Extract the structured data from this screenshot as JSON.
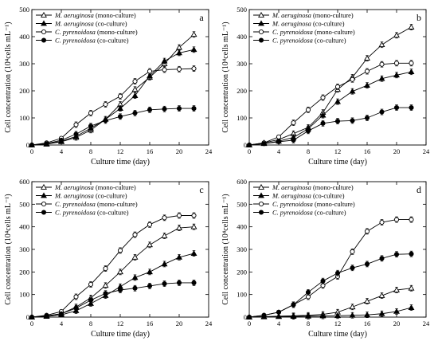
{
  "chart_data": [
    {
      "type": "line",
      "panel_label": "a",
      "xlabel": "Culture time (day)",
      "ylabel_text": "Cell concentration",
      "ylabel_unit": "(10⁴cells mL⁻¹)",
      "xlim": [
        0,
        24
      ],
      "ylim": [
        0,
        500
      ],
      "xticks": [
        0,
        4,
        8,
        12,
        16,
        20,
        24
      ],
      "yticks": [
        0,
        100,
        200,
        300,
        400,
        500
      ],
      "legend_position": "top-left",
      "series": [
        {
          "name_italic": "M. aeruginosa",
          "name_suffix": " (mono-culture)",
          "marker": "open-triangle",
          "x": [
            0,
            2,
            4,
            6,
            8,
            10,
            12,
            14,
            16,
            18,
            20,
            22
          ],
          "y": [
            0,
            3,
            12,
            28,
            55,
            95,
            150,
            205,
            250,
            300,
            360,
            408
          ]
        },
        {
          "name_italic": "M. aeruginosa",
          "name_suffix": " (co-culture)",
          "marker": "filled-triangle",
          "x": [
            0,
            2,
            4,
            6,
            8,
            10,
            12,
            14,
            16,
            18,
            20,
            22
          ],
          "y": [
            0,
            4,
            14,
            32,
            62,
            95,
            135,
            182,
            255,
            310,
            340,
            352
          ]
        },
        {
          "name_italic": "C. pyrenoidosa",
          "name_suffix": " (mono-culture)",
          "marker": "open-circle",
          "x": [
            0,
            2,
            4,
            6,
            8,
            10,
            12,
            14,
            16,
            18,
            20,
            22
          ],
          "y": [
            0,
            8,
            25,
            75,
            118,
            150,
            180,
            235,
            272,
            278,
            280,
            282
          ]
        },
        {
          "name_italic": "C. pyrenoidosa",
          "name_suffix": " (co-culture)",
          "marker": "filled-circle",
          "x": [
            0,
            2,
            4,
            6,
            8,
            10,
            12,
            14,
            16,
            18,
            20,
            22
          ],
          "y": [
            0,
            5,
            18,
            40,
            70,
            90,
            105,
            118,
            130,
            133,
            135,
            135
          ]
        }
      ]
    },
    {
      "type": "line",
      "panel_label": "b",
      "xlabel": "Culture time (day)",
      "ylabel_text": "Cell concentration",
      "ylabel_unit": "(10⁴cells mL⁻¹)",
      "xlim": [
        0,
        24
      ],
      "ylim": [
        0,
        500
      ],
      "xticks": [
        0,
        4,
        8,
        12,
        16,
        20,
        24
      ],
      "yticks": [
        0,
        100,
        200,
        300,
        400,
        500
      ],
      "legend_position": "top-left",
      "series": [
        {
          "name_italic": "M. aeruginosa",
          "name_suffix": " (mono-culture)",
          "marker": "open-triangle",
          "x": [
            0,
            2,
            4,
            6,
            8,
            10,
            12,
            14,
            16,
            18,
            20,
            22
          ],
          "y": [
            0,
            8,
            20,
            42,
            65,
            120,
            205,
            250,
            320,
            370,
            405,
            435
          ]
        },
        {
          "name_italic": "M. aeruginosa",
          "name_suffix": " (co-culture)",
          "marker": "filled-triangle",
          "x": [
            0,
            2,
            4,
            6,
            8,
            10,
            12,
            14,
            16,
            18,
            20,
            22
          ],
          "y": [
            0,
            5,
            14,
            28,
            60,
            110,
            160,
            198,
            220,
            245,
            258,
            270
          ]
        },
        {
          "name_italic": "C. pyrenoidosa",
          "name_suffix": " (mono-culture)",
          "marker": "open-circle",
          "x": [
            0,
            2,
            4,
            6,
            8,
            10,
            12,
            14,
            16,
            18,
            20,
            22
          ],
          "y": [
            0,
            8,
            30,
            82,
            130,
            175,
            215,
            242,
            272,
            298,
            302,
            302
          ]
        },
        {
          "name_italic": "C. pyrenoidosa",
          "name_suffix": " (co-culture)",
          "marker": "filled-circle",
          "x": [
            0,
            2,
            4,
            6,
            8,
            10,
            12,
            14,
            16,
            18,
            20,
            22
          ],
          "y": [
            0,
            5,
            12,
            18,
            52,
            80,
            88,
            90,
            100,
            122,
            138,
            138
          ]
        }
      ]
    },
    {
      "type": "line",
      "panel_label": "c",
      "xlabel": "Culture time (day)",
      "ylabel_text": "Cell concentration",
      "ylabel_unit": "(10⁴cells mL⁻¹)",
      "xlim": [
        0,
        24
      ],
      "ylim": [
        0,
        600
      ],
      "xticks": [
        0,
        4,
        8,
        12,
        16,
        20,
        24
      ],
      "yticks": [
        0,
        100,
        200,
        300,
        400,
        500,
        600
      ],
      "legend_position": "top-left",
      "series": [
        {
          "name_italic": "M. aeruginosa",
          "name_suffix": " (mono-culture)",
          "marker": "open-triangle",
          "x": [
            0,
            2,
            4,
            6,
            8,
            10,
            12,
            14,
            16,
            18,
            20,
            22
          ],
          "y": [
            0,
            5,
            15,
            45,
            85,
            140,
            200,
            265,
            320,
            360,
            395,
            400
          ]
        },
        {
          "name_italic": "M. aeruginosa",
          "name_suffix": " (co-culture)",
          "marker": "filled-triangle",
          "x": [
            0,
            2,
            4,
            6,
            8,
            10,
            12,
            14,
            16,
            18,
            20,
            22
          ],
          "y": [
            0,
            3,
            10,
            28,
            60,
            95,
            135,
            175,
            200,
            235,
            265,
            282
          ]
        },
        {
          "name_italic": "C. pyrenoidosa",
          "name_suffix": " (mono-culture)",
          "marker": "open-circle",
          "x": [
            0,
            2,
            4,
            6,
            8,
            10,
            12,
            14,
            16,
            18,
            20,
            22
          ],
          "y": [
            0,
            8,
            25,
            90,
            145,
            215,
            295,
            365,
            410,
            440,
            450,
            450
          ]
        },
        {
          "name_italic": "C. pyrenoidosa",
          "name_suffix": " (co-culture)",
          "marker": "filled-circle",
          "x": [
            0,
            2,
            4,
            6,
            8,
            10,
            12,
            14,
            16,
            18,
            20,
            22
          ],
          "y": [
            0,
            5,
            15,
            40,
            75,
            105,
            120,
            128,
            138,
            148,
            152,
            152
          ]
        }
      ]
    },
    {
      "type": "line",
      "panel_label": "d",
      "xlabel": "Culture time (day)",
      "ylabel_text": "Cell concentration",
      "ylabel_unit": "(10⁴cells mL⁻¹)",
      "xlim": [
        0,
        24
      ],
      "ylim": [
        0,
        600
      ],
      "xticks": [
        0,
        4,
        8,
        12,
        16,
        20,
        24
      ],
      "yticks": [
        0,
        100,
        200,
        300,
        400,
        500,
        600
      ],
      "legend_position": "top-left",
      "series": [
        {
          "name_italic": "M. aeruginosa",
          "name_suffix": " (mono-culture)",
          "marker": "open-triangle",
          "x": [
            0,
            2,
            4,
            6,
            8,
            10,
            12,
            14,
            16,
            18,
            20,
            22
          ],
          "y": [
            0,
            2,
            4,
            6,
            8,
            12,
            22,
            45,
            70,
            95,
            120,
            128
          ]
        },
        {
          "name_italic": "M. aeruginosa",
          "name_suffix": " (co-culture)",
          "marker": "filled-triangle",
          "x": [
            0,
            2,
            4,
            6,
            8,
            10,
            12,
            14,
            16,
            18,
            20,
            22
          ],
          "y": [
            0,
            1,
            2,
            3,
            4,
            5,
            6,
            8,
            10,
            15,
            25,
            42
          ]
        },
        {
          "name_italic": "C. pyrenoidosa",
          "name_suffix": " (mono-culture)",
          "marker": "open-circle",
          "x": [
            0,
            2,
            4,
            6,
            8,
            10,
            12,
            14,
            16,
            18,
            20,
            22
          ],
          "y": [
            0,
            8,
            22,
            55,
            90,
            140,
            180,
            290,
            380,
            420,
            432,
            432
          ]
        },
        {
          "name_italic": "C. pyrenoidosa",
          "name_suffix": " (co-culture)",
          "marker": "filled-circle",
          "x": [
            0,
            2,
            4,
            6,
            8,
            10,
            12,
            14,
            16,
            18,
            20,
            22
          ],
          "y": [
            0,
            8,
            22,
            55,
            110,
            160,
            195,
            218,
            235,
            260,
            278,
            280
          ]
        }
      ]
    }
  ]
}
